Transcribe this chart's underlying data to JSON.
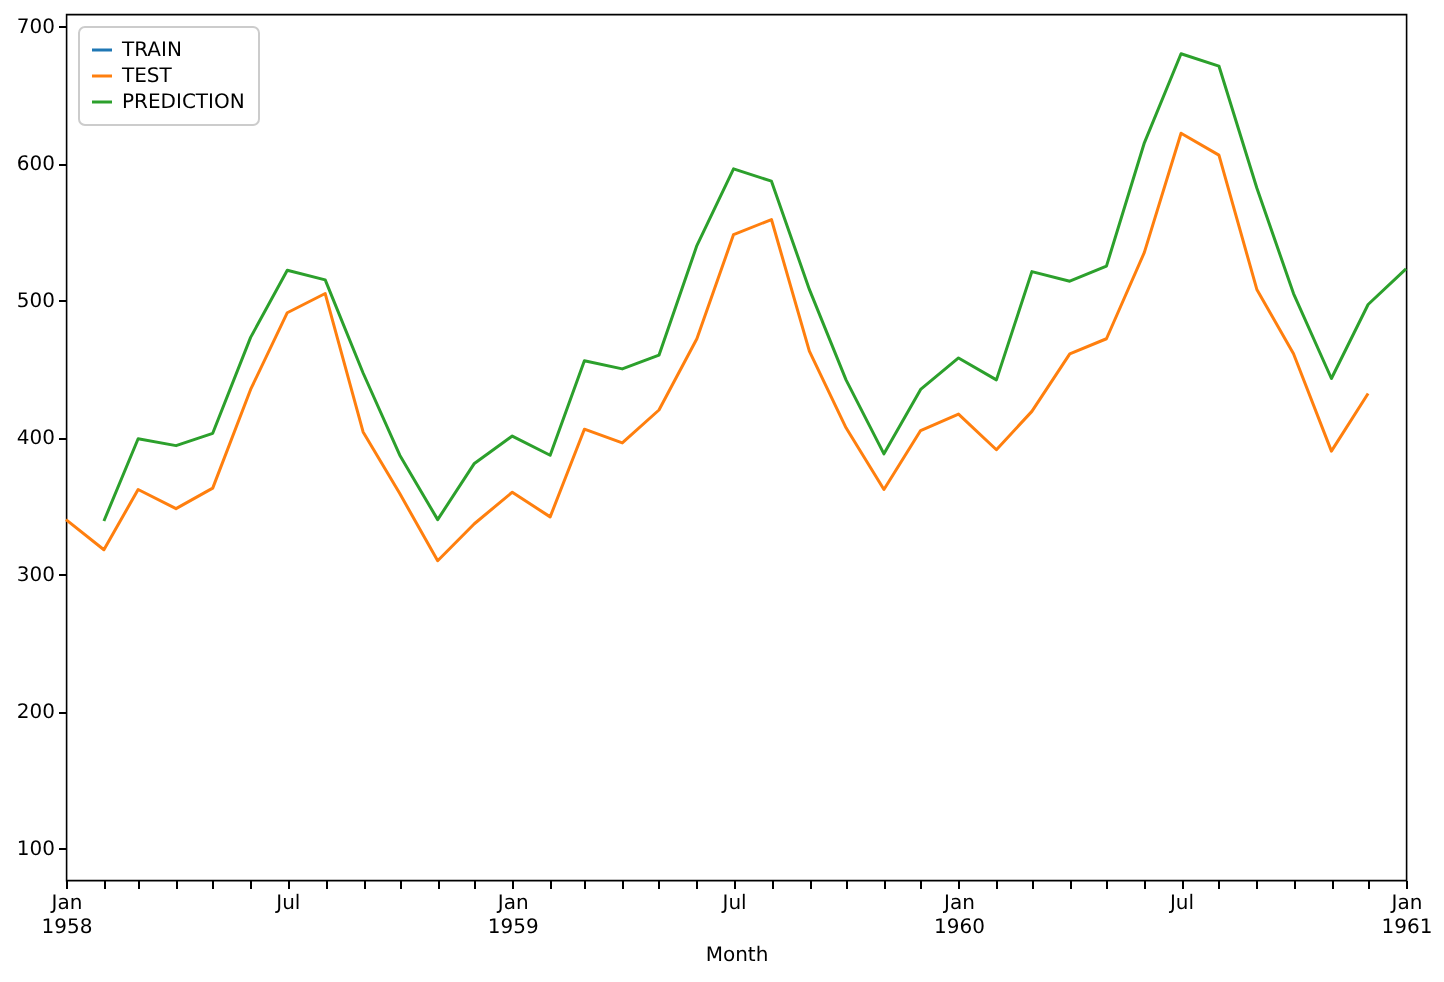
{
  "chart_data": {
    "type": "line",
    "xlabel": "Month",
    "x": [
      "1958-01",
      "1958-02",
      "1958-03",
      "1958-04",
      "1958-05",
      "1958-06",
      "1958-07",
      "1958-08",
      "1958-09",
      "1958-10",
      "1958-11",
      "1958-12",
      "1959-01",
      "1959-02",
      "1959-03",
      "1959-04",
      "1959-05",
      "1959-06",
      "1959-07",
      "1959-08",
      "1959-09",
      "1959-10",
      "1959-11",
      "1959-12",
      "1960-01",
      "1960-02",
      "1960-03",
      "1960-04",
      "1960-05",
      "1960-06",
      "1960-07",
      "1960-08",
      "1960-09",
      "1960-10",
      "1960-11",
      "1960-12",
      "1961-01"
    ],
    "series": [
      {
        "name": "TRAIN",
        "color": "#1f77b4",
        "values": [
          null,
          null,
          null,
          null,
          null,
          null,
          null,
          null,
          null,
          null,
          null,
          null,
          null,
          null,
          null,
          null,
          null,
          null,
          null,
          null,
          null,
          null,
          null,
          null,
          null,
          null,
          null,
          null,
          null,
          null,
          null,
          null,
          null,
          null,
          null,
          null,
          null
        ]
      },
      {
        "name": "TEST",
        "color": "#ff7f0e",
        "values": [
          340,
          318,
          362,
          348,
          363,
          435,
          491,
          505,
          404,
          359,
          310,
          337,
          360,
          342,
          406,
          396,
          420,
          472,
          548,
          559,
          463,
          407,
          362,
          405,
          417,
          391,
          419,
          461,
          472,
          535,
          622,
          606,
          508,
          461,
          390,
          432,
          null
        ]
      },
      {
        "name": "PREDICTION",
        "color": "#2ca02c",
        "values": [
          null,
          339,
          399,
          394,
          403,
          473,
          522,
          515,
          447,
          387,
          340,
          381,
          401,
          387,
          456,
          450,
          460,
          540,
          596,
          587,
          508,
          442,
          388,
          435,
          458,
          442,
          521,
          514,
          525,
          615,
          680,
          671,
          582,
          505,
          443,
          497,
          523
        ]
      }
    ],
    "xlim": [
      "1958-01",
      "1961-01"
    ],
    "xticks": [
      {
        "value": "1958-01",
        "label": "Jan 1958"
      },
      {
        "value": "1958-02",
        "label": null
      },
      {
        "value": "1958-03",
        "label": null
      },
      {
        "value": "1958-04",
        "label": null
      },
      {
        "value": "1958-05",
        "label": null
      },
      {
        "value": "1958-06",
        "label": null
      },
      {
        "value": "1958-07",
        "label": "Jul"
      },
      {
        "value": "1958-08",
        "label": null
      },
      {
        "value": "1958-09",
        "label": null
      },
      {
        "value": "1958-10",
        "label": null
      },
      {
        "value": "1958-11",
        "label": null
      },
      {
        "value": "1958-12",
        "label": null
      },
      {
        "value": "1959-01",
        "label": "Jan 1959"
      },
      {
        "value": "1959-02",
        "label": null
      },
      {
        "value": "1959-03",
        "label": null
      },
      {
        "value": "1959-04",
        "label": null
      },
      {
        "value": "1959-05",
        "label": null
      },
      {
        "value": "1959-06",
        "label": null
      },
      {
        "value": "1959-07",
        "label": "Jul"
      },
      {
        "value": "1959-08",
        "label": null
      },
      {
        "value": "1959-09",
        "label": null
      },
      {
        "value": "1959-10",
        "label": null
      },
      {
        "value": "1959-11",
        "label": null
      },
      {
        "value": "1959-12",
        "label": null
      },
      {
        "value": "1960-01",
        "label": "Jan 1960"
      },
      {
        "value": "1960-02",
        "label": null
      },
      {
        "value": "1960-03",
        "label": null
      },
      {
        "value": "1960-04",
        "label": null
      },
      {
        "value": "1960-05",
        "label": null
      },
      {
        "value": "1960-06",
        "label": null
      },
      {
        "value": "1960-07",
        "label": "Jul"
      },
      {
        "value": "1960-08",
        "label": null
      },
      {
        "value": "1960-09",
        "label": null
      },
      {
        "value": "1960-10",
        "label": null
      },
      {
        "value": "1960-11",
        "label": null
      },
      {
        "value": "1960-12",
        "label": null
      },
      {
        "value": "1961-01",
        "label": "Jan 1961"
      }
    ],
    "ylim": [
      77,
      709
    ],
    "yticks": [
      100,
      200,
      300,
      400,
      500,
      600,
      700
    ],
    "grid": false,
    "legend": "top left",
    "line_style": "solid",
    "marker": "none"
  }
}
